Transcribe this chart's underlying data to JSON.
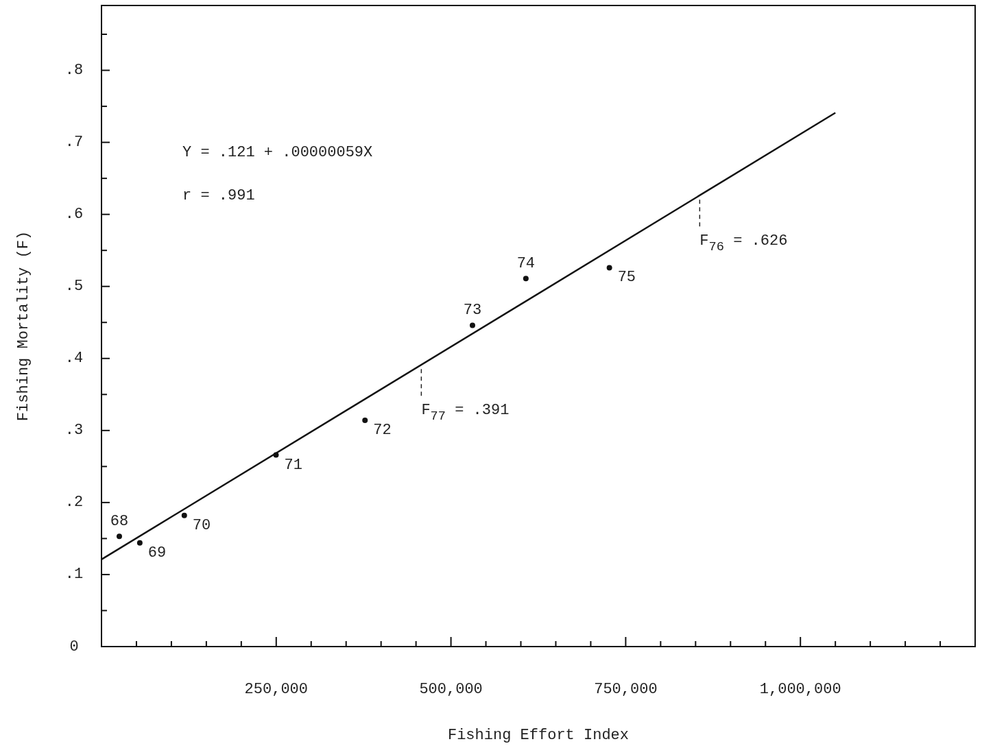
{
  "chart_data": {
    "type": "scatter",
    "xlabel": "Fishing Effort Index",
    "ylabel": "Fishing Mortality (F)",
    "xlim": [
      0,
      1250000
    ],
    "ylim": [
      0,
      0.89
    ],
    "xticks": [
      {
        "value": 50000,
        "label": null
      },
      {
        "value": 100000,
        "label": null
      },
      {
        "value": 150000,
        "label": null
      },
      {
        "value": 200000,
        "label": null
      },
      {
        "value": 250000,
        "label": "250,000"
      },
      {
        "value": 300000,
        "label": null
      },
      {
        "value": 350000,
        "label": null
      },
      {
        "value": 400000,
        "label": null
      },
      {
        "value": 450000,
        "label": null
      },
      {
        "value": 500000,
        "label": "500,000"
      },
      {
        "value": 550000,
        "label": null
      },
      {
        "value": 600000,
        "label": null
      },
      {
        "value": 650000,
        "label": null
      },
      {
        "value": 700000,
        "label": null
      },
      {
        "value": 750000,
        "label": "750,000"
      },
      {
        "value": 800000,
        "label": null
      },
      {
        "value": 850000,
        "label": null
      },
      {
        "value": 900000,
        "label": null
      },
      {
        "value": 950000,
        "label": null
      },
      {
        "value": 1000000,
        "label": "1,000,000"
      },
      {
        "value": 1050000,
        "label": null
      },
      {
        "value": 1100000,
        "label": null
      },
      {
        "value": 1150000,
        "label": null
      },
      {
        "value": 1200000,
        "label": null
      }
    ],
    "yticks": [
      0,
      {
        "value": 0.05,
        "label": null
      },
      {
        "value": 0.1,
        "label": ".1"
      },
      {
        "value": 0.15,
        "label": null
      },
      {
        "value": 0.2,
        "label": ".2"
      },
      {
        "value": 0.25,
        "label": null
      },
      {
        "value": 0.3,
        "label": ".3"
      },
      {
        "value": 0.35,
        "label": null
      },
      {
        "value": 0.4,
        "label": ".4"
      },
      {
        "value": 0.45,
        "label": null
      },
      {
        "value": 0.5,
        "label": ".5"
      },
      {
        "value": 0.55,
        "label": null
      },
      {
        "value": 0.6,
        "label": ".6"
      },
      {
        "value": 0.65,
        "label": null
      },
      {
        "value": 0.7,
        "label": ".7"
      },
      {
        "value": 0.75,
        "label": null
      },
      {
        "value": 0.8,
        "label": ".8"
      },
      {
        "value": 0.85,
        "label": null
      }
    ],
    "grid": false,
    "series": [
      {
        "color": "#111111",
        "marker": "circle",
        "x": [
          25500,
          54800,
          118500,
          249700,
          377000,
          530800,
          607200,
          726700
        ],
        "values": [
          0.153,
          0.144,
          0.182,
          0.266,
          0.314,
          0.446,
          0.511,
          0.526
        ]
      },
      {
        "type": "line",
        "color": "#111111",
        "marker": "none",
        "line_style": "solid",
        "x": [
          0,
          1050000
        ],
        "values": [
          0.121,
          0.741
        ]
      }
    ],
    "annotations": [
      "Y = .121 + .00000059X",
      "r = .991",
      {
        "text": "68",
        "x": 25500,
        "y": 0.153
      },
      {
        "text": "69",
        "x": 54800,
        "y": 0.144
      },
      {
        "text": "70",
        "x": 118500,
        "y": 0.182
      },
      {
        "text": "71",
        "x": 249700,
        "y": 0.266
      },
      {
        "text": "72",
        "x": 377000,
        "y": 0.314
      },
      {
        "text": "73",
        "x": 530800,
        "y": 0.446
      },
      {
        "text": "74",
        "x": 607200,
        "y": 0.511
      },
      {
        "text": "75",
        "x": 726700,
        "y": 0.526
      },
      {
        "text": "F$_{77}$ = .391",
        "x": 457600,
        "y": 0.391
      },
      {
        "text": "F$_{76}$ = .626",
        "x": 855900,
        "y": 0.626
      }
    ]
  }
}
